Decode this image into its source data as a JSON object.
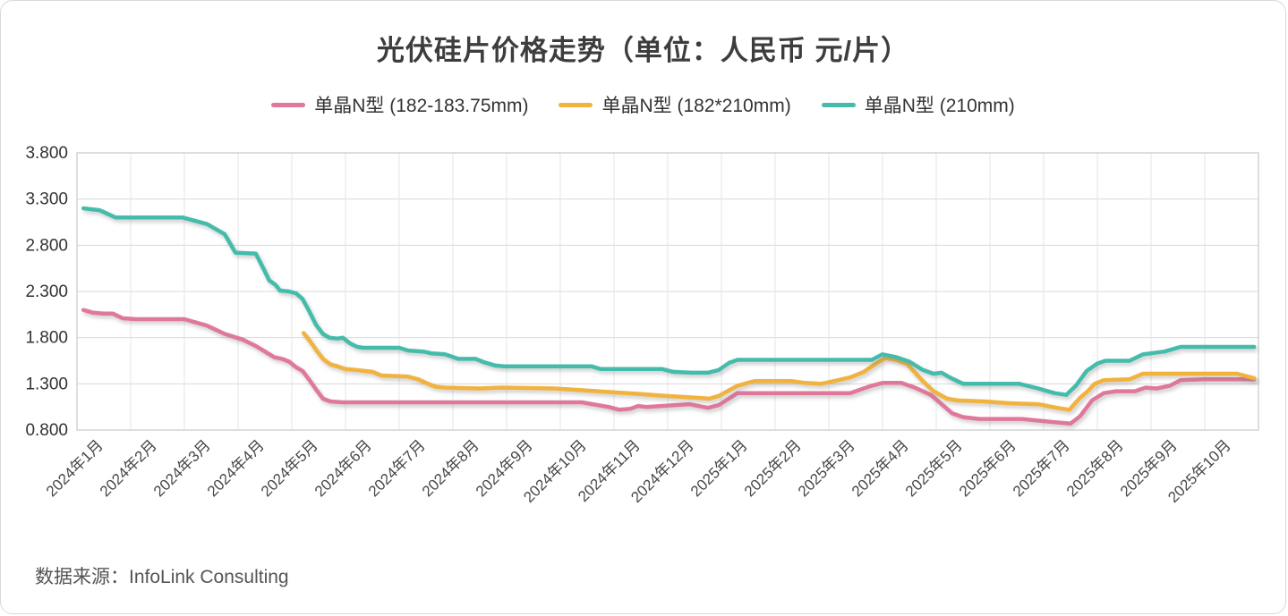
{
  "title": "光伏硅片价格走势（单位：人民币 元/片）",
  "footer": {
    "source_label": "数据来源：InfoLink Consulting"
  },
  "legend": [
    {
      "label": "单晶N型 (182-183.75mm)",
      "color": "#e0789c"
    },
    {
      "label": "单晶N型 (182*210mm)",
      "color": "#f1b23e"
    },
    {
      "label": "单晶N型 (210mm)",
      "color": "#45bcab"
    }
  ],
  "chart_data": {
    "type": "line",
    "title": "光伏硅片价格走势（单位：人民币 元/片）",
    "unit": "人民币 元/片",
    "grid": true,
    "legend_position": "top",
    "x_axis": {
      "labels": [
        "2024年1月",
        "2024年2月",
        "2024年3月",
        "2024年4月",
        "2024年5月",
        "2024年6月",
        "2024年7月",
        "2024年8月",
        "2024年9月",
        "2024年10月",
        "2024年11月",
        "2024年12月",
        "2025年1月",
        "2025年2月",
        "2025年3月",
        "2025年4月",
        "2025年5月",
        "2025年6月",
        "2025年7月",
        "2025年8月",
        "2025年9月",
        "2025年10月"
      ]
    },
    "y_axis": {
      "tick_labels": [
        "3.800",
        "3.300",
        "2.800",
        "2.300",
        "1.800",
        "1.300",
        "0.800"
      ],
      "min": 0.8,
      "max": 3.8
    },
    "series": [
      {
        "name": "单晶N型 (182-183.75mm)",
        "color": "#e0789c",
        "points": [
          [
            0.12,
            2.1
          ],
          [
            0.3,
            2.07
          ],
          [
            0.5,
            2.06
          ],
          [
            0.67,
            2.06
          ],
          [
            0.85,
            2.01
          ],
          [
            1.1,
            2.0
          ],
          [
            2.0,
            2.0
          ],
          [
            2.42,
            1.93
          ],
          [
            2.75,
            1.84
          ],
          [
            3.08,
            1.78
          ],
          [
            3.33,
            1.71
          ],
          [
            3.5,
            1.65
          ],
          [
            3.67,
            1.59
          ],
          [
            3.82,
            1.57
          ],
          [
            3.95,
            1.54
          ],
          [
            4.08,
            1.48
          ],
          [
            4.2,
            1.44
          ],
          [
            4.33,
            1.34
          ],
          [
            4.45,
            1.24
          ],
          [
            4.58,
            1.14
          ],
          [
            4.72,
            1.11
          ],
          [
            4.95,
            1.1
          ],
          [
            9.4,
            1.1
          ],
          [
            9.6,
            1.08
          ],
          [
            9.9,
            1.05
          ],
          [
            10.1,
            1.02
          ],
          [
            10.3,
            1.03
          ],
          [
            10.45,
            1.06
          ],
          [
            10.6,
            1.05
          ],
          [
            11.4,
            1.08
          ],
          [
            11.75,
            1.04
          ],
          [
            11.95,
            1.07
          ],
          [
            12.3,
            1.2
          ],
          [
            14.4,
            1.2
          ],
          [
            14.6,
            1.24
          ],
          [
            14.8,
            1.28
          ],
          [
            15.0,
            1.31
          ],
          [
            15.35,
            1.31
          ],
          [
            15.6,
            1.26
          ],
          [
            15.9,
            1.18
          ],
          [
            16.1,
            1.08
          ],
          [
            16.3,
            0.98
          ],
          [
            16.5,
            0.94
          ],
          [
            16.8,
            0.92
          ],
          [
            17.6,
            0.92
          ],
          [
            17.95,
            0.9
          ],
          [
            18.3,
            0.88
          ],
          [
            18.5,
            0.87
          ],
          [
            18.68,
            0.95
          ],
          [
            18.9,
            1.12
          ],
          [
            19.12,
            1.2
          ],
          [
            19.35,
            1.22
          ],
          [
            19.7,
            1.22
          ],
          [
            19.9,
            1.26
          ],
          [
            20.1,
            1.25
          ],
          [
            20.35,
            1.28
          ],
          [
            20.55,
            1.34
          ],
          [
            21.0,
            1.35
          ],
          [
            21.92,
            1.35
          ]
        ]
      },
      {
        "name": "单晶N型 (182*210mm)",
        "color": "#f1b23e",
        "points": [
          [
            4.22,
            1.85
          ],
          [
            4.33,
            1.77
          ],
          [
            4.45,
            1.67
          ],
          [
            4.58,
            1.57
          ],
          [
            4.72,
            1.51
          ],
          [
            4.85,
            1.49
          ],
          [
            5.0,
            1.46
          ],
          [
            5.2,
            1.45
          ],
          [
            5.35,
            1.44
          ],
          [
            5.5,
            1.43
          ],
          [
            5.67,
            1.39
          ],
          [
            6.15,
            1.38
          ],
          [
            6.35,
            1.35
          ],
          [
            6.5,
            1.31
          ],
          [
            6.67,
            1.27
          ],
          [
            6.85,
            1.26
          ],
          [
            7.5,
            1.25
          ],
          [
            7.9,
            1.26
          ],
          [
            8.9,
            1.25
          ],
          [
            9.95,
            1.21
          ],
          [
            10.25,
            1.2
          ],
          [
            10.95,
            1.17
          ],
          [
            11.5,
            1.15
          ],
          [
            11.78,
            1.14
          ],
          [
            11.95,
            1.17
          ],
          [
            12.3,
            1.28
          ],
          [
            12.62,
            1.33
          ],
          [
            13.3,
            1.33
          ],
          [
            13.55,
            1.31
          ],
          [
            13.85,
            1.3
          ],
          [
            14.1,
            1.33
          ],
          [
            14.4,
            1.37
          ],
          [
            14.65,
            1.43
          ],
          [
            14.88,
            1.52
          ],
          [
            15.05,
            1.58
          ],
          [
            15.25,
            1.56
          ],
          [
            15.45,
            1.52
          ],
          [
            15.75,
            1.33
          ],
          [
            15.95,
            1.22
          ],
          [
            16.2,
            1.14
          ],
          [
            16.4,
            1.12
          ],
          [
            16.9,
            1.11
          ],
          [
            17.35,
            1.09
          ],
          [
            17.9,
            1.08
          ],
          [
            18.25,
            1.04
          ],
          [
            18.48,
            1.02
          ],
          [
            18.68,
            1.15
          ],
          [
            18.82,
            1.22
          ],
          [
            18.95,
            1.3
          ],
          [
            19.12,
            1.34
          ],
          [
            19.6,
            1.35
          ],
          [
            19.85,
            1.41
          ],
          [
            21.6,
            1.41
          ],
          [
            21.92,
            1.36
          ]
        ]
      },
      {
        "name": "单晶N型 (210mm)",
        "color": "#45bcab",
        "points": [
          [
            0.12,
            3.2
          ],
          [
            0.42,
            3.18
          ],
          [
            0.72,
            3.1
          ],
          [
            1.97,
            3.1
          ],
          [
            2.42,
            3.03
          ],
          [
            2.63,
            2.96
          ],
          [
            2.75,
            2.92
          ],
          [
            2.87,
            2.8
          ],
          [
            2.95,
            2.72
          ],
          [
            3.33,
            2.71
          ],
          [
            3.47,
            2.55
          ],
          [
            3.58,
            2.42
          ],
          [
            3.7,
            2.37
          ],
          [
            3.78,
            2.31
          ],
          [
            3.95,
            2.3
          ],
          [
            4.08,
            2.28
          ],
          [
            4.2,
            2.22
          ],
          [
            4.33,
            2.08
          ],
          [
            4.45,
            1.94
          ],
          [
            4.58,
            1.84
          ],
          [
            4.7,
            1.8
          ],
          [
            4.85,
            1.79
          ],
          [
            4.95,
            1.8
          ],
          [
            5.08,
            1.74
          ],
          [
            5.22,
            1.7
          ],
          [
            5.33,
            1.69
          ],
          [
            6.0,
            1.69
          ],
          [
            6.17,
            1.66
          ],
          [
            6.45,
            1.65
          ],
          [
            6.6,
            1.63
          ],
          [
            6.85,
            1.62
          ],
          [
            6.95,
            1.6
          ],
          [
            7.1,
            1.57
          ],
          [
            7.42,
            1.57
          ],
          [
            7.6,
            1.53
          ],
          [
            7.78,
            1.5
          ],
          [
            7.95,
            1.49
          ],
          [
            9.58,
            1.49
          ],
          [
            9.75,
            1.46
          ],
          [
            10.9,
            1.46
          ],
          [
            11.1,
            1.43
          ],
          [
            11.45,
            1.42
          ],
          [
            11.75,
            1.42
          ],
          [
            11.95,
            1.45
          ],
          [
            12.15,
            1.53
          ],
          [
            12.3,
            1.56
          ],
          [
            14.8,
            1.56
          ],
          [
            15.0,
            1.62
          ],
          [
            15.25,
            1.59
          ],
          [
            15.5,
            1.54
          ],
          [
            15.75,
            1.45
          ],
          [
            15.95,
            1.41
          ],
          [
            16.1,
            1.42
          ],
          [
            16.25,
            1.37
          ],
          [
            16.5,
            1.3
          ],
          [
            17.55,
            1.3
          ],
          [
            17.9,
            1.25
          ],
          [
            18.2,
            1.2
          ],
          [
            18.42,
            1.18
          ],
          [
            18.6,
            1.28
          ],
          [
            18.8,
            1.44
          ],
          [
            19.0,
            1.52
          ],
          [
            19.15,
            1.55
          ],
          [
            19.6,
            1.55
          ],
          [
            19.85,
            1.62
          ],
          [
            20.25,
            1.65
          ],
          [
            20.55,
            1.7
          ],
          [
            21.92,
            1.7
          ]
        ]
      }
    ]
  }
}
